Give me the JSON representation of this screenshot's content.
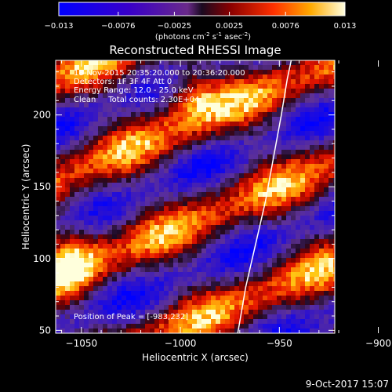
{
  "colorbar": {
    "ticks": [
      "-0.013",
      "-0.0076",
      "-0.0025",
      "0.0025",
      "0.0076",
      "0.013"
    ],
    "units_main": "(photons cm",
    "units_sup1": "-2",
    "units_mid": " s",
    "units_sup2": "-1",
    "units_end": " asec",
    "units_sup3": "-2",
    "units_close": ")"
  },
  "chart_data": {
    "type": "heatmap",
    "title": "Reconstructed RHESSI Image",
    "xlabel": "Heliocentric X (arcsec)",
    "ylabel": "Heliocentric Y (arcsec)",
    "xlim": [
      -1063,
      -922
    ],
    "ylim": [
      48,
      238
    ],
    "x_ticks": [
      -1050,
      -1000,
      -950,
      -900
    ],
    "x_tick_labels": [
      "−1050",
      "−1000",
      "−950",
      "−900"
    ],
    "y_ticks": [
      50,
      100,
      150,
      200
    ],
    "y_tick_labels": [
      "50",
      "100",
      "150",
      "200"
    ],
    "value_range": [
      -0.013,
      0.013
    ],
    "limb_points": [
      [
        -971,
        48
      ],
      [
        -967,
        80
      ],
      [
        -962,
        110
      ],
      [
        -957,
        140
      ],
      [
        -953,
        170
      ],
      [
        -949,
        200
      ],
      [
        -946,
        225
      ],
      [
        -944,
        238
      ]
    ],
    "annotations": {
      "line1": "18-Nov-2015 20:35:20.000 to 20:36:20.000",
      "line2": "Detectors: 1F 3F 4F Att 0",
      "line3": "Energy Range: 12.0 - 25.0 keV",
      "line4": "Clean     Total counts: 2.30E+04",
      "peak": "Position of Peak = [-983,232]"
    }
  },
  "footer": {
    "timestamp": "9-Oct-2017 15:07"
  }
}
